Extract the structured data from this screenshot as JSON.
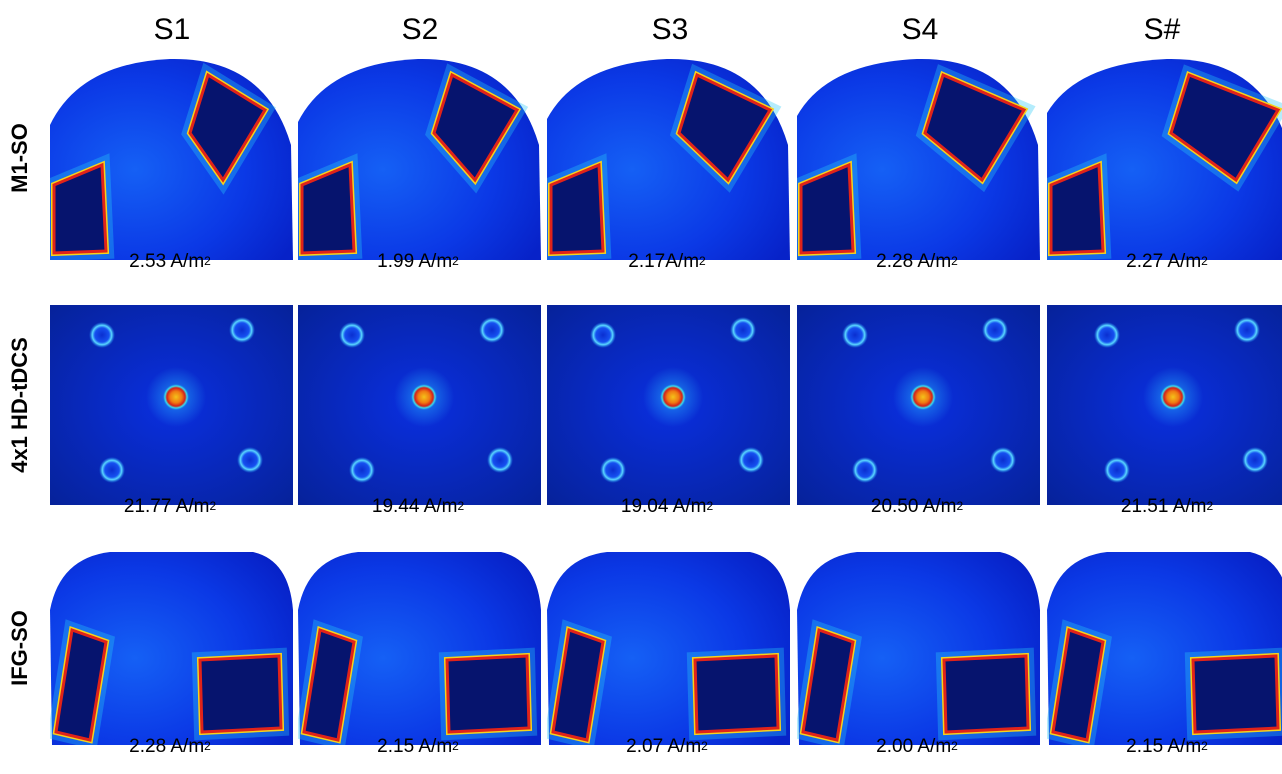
{
  "columns": [
    "S1",
    "S2",
    "S3",
    "S4",
    "S#"
  ],
  "rows": [
    {
      "label": "M1-SO",
      "values": [
        {
          "number": "2.53",
          "unit": " A/m",
          "exp": "2"
        },
        {
          "number": "1.99",
          "unit": " A/m",
          "exp": "2"
        },
        {
          "number": "2.17",
          "unit": "A/m",
          "exp": "2"
        },
        {
          "number": "2.28",
          "unit": " A/m",
          "exp": "2"
        },
        {
          "number": "2.27",
          "unit": " A/m",
          "exp": "2"
        }
      ]
    },
    {
      "label": "4x1 HD-tDCS",
      "values": [
        {
          "number": "21.77",
          "unit": " A/m",
          "exp": "2"
        },
        {
          "number": "19.44",
          "unit": " A/m",
          "exp": "2"
        },
        {
          "number": "19.04",
          "unit": " A/m",
          "exp": "2"
        },
        {
          "number": "20.50",
          "unit": " A/m",
          "exp": "2"
        },
        {
          "number": "21.51",
          "unit": " A/m",
          "exp": "2"
        }
      ]
    },
    {
      "label": "IFG-SO",
      "values": [
        {
          "number": "2.28",
          "unit": " A/m",
          "exp": "2"
        },
        {
          "number": "2.15",
          "unit": " A/m",
          "exp": "2"
        },
        {
          "number": "2.07",
          "unit": " A/m",
          "exp": "2"
        },
        {
          "number": "2.00",
          "unit": " A/m",
          "exp": "2"
        },
        {
          "number": "2.15",
          "unit": " A/m",
          "exp": "2"
        }
      ]
    }
  ],
  "colors": {
    "background_field": "#0a2fe6",
    "dark_field": "#06146e",
    "edge_hot": "#e0231a",
    "edge_warm": "#f5d31c",
    "halo": "#1fb4f0"
  }
}
